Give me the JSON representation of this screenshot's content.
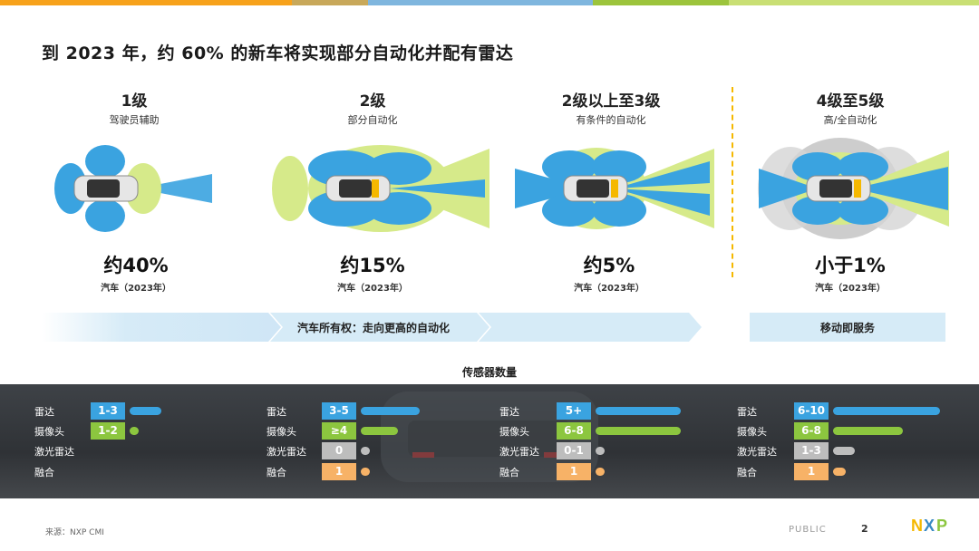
{
  "title": "到 2023 年，约 60% 的新车将实现部分自动化并配有雷达",
  "colors": {
    "blue": "#3aa3e0",
    "green": "#8cc63f",
    "gray": "#bdbdbd",
    "orange": "#f7b267",
    "lightgreen": "#e4f1b0",
    "band": "#d6ebf7"
  },
  "levels": [
    {
      "num": "1级",
      "name": "驾驶员辅助",
      "pct": "约40%",
      "caption": "汽车（2023年）"
    },
    {
      "num": "2级",
      "name": "部分自动化",
      "pct": "约15%",
      "caption": "汽车（2023年）"
    },
    {
      "num": "2级以上至3级",
      "name": "有条件的自动化",
      "pct": "约5%",
      "caption": "汽车（2023年）"
    },
    {
      "num": "4级至5级",
      "name": "高/全自动化",
      "pct": "小于1%",
      "caption": "汽车（2023年）"
    }
  ],
  "band": {
    "ownership": "汽车所有权：走向更高的自动化",
    "mobility": "移动即服务"
  },
  "sensors": {
    "title": "传感器数量",
    "labels": [
      "雷达",
      "摄像头",
      "激光雷达",
      "融合"
    ],
    "groups": [
      {
        "values": [
          "1-3",
          "1-2",
          "",
          ""
        ],
        "fills": [
          0.3,
          0.05,
          0,
          0
        ]
      },
      {
        "values": [
          "3-5",
          "≥4",
          "0",
          "1"
        ],
        "fills": [
          0.55,
          0.35,
          0,
          0.05
        ]
      },
      {
        "values": [
          "5+",
          "6-8",
          "0-1",
          "1"
        ],
        "fills": [
          0.8,
          0.8,
          0.05,
          0.05
        ]
      },
      {
        "values": [
          "6-10",
          "6-8",
          "1-3",
          "1"
        ],
        "fills": [
          1.0,
          0.65,
          0.2,
          0.12
        ]
      }
    ]
  },
  "footer": {
    "source": "来源：NXP CMI",
    "public": "PUBLIC",
    "page": "2",
    "logo": "NXP"
  }
}
